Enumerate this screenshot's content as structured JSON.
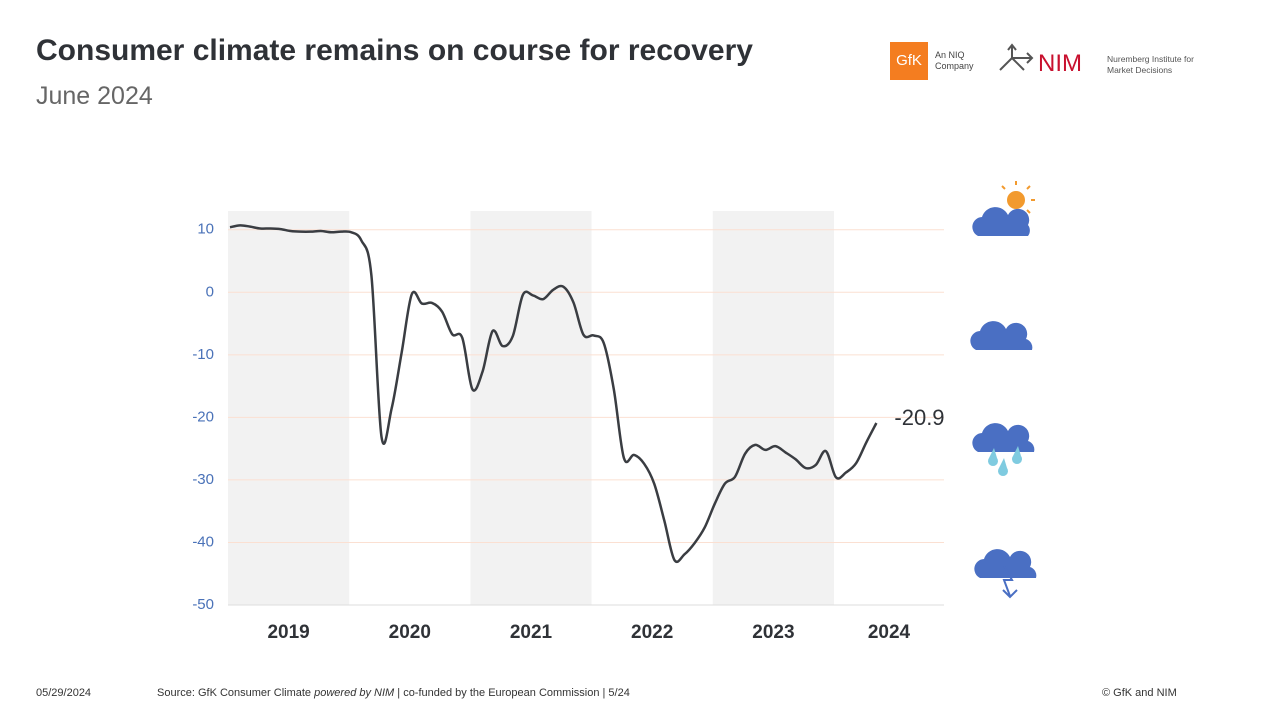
{
  "header": {
    "title": "Consumer climate remains on course for recovery",
    "subtitle": "June 2024",
    "logo_gfk": "GfK",
    "logo_gfk_tagline": "An NIQ Company",
    "logo_nim": "NIM",
    "logo_nim_tagline": "Nuremberg Institute for Market Decisions"
  },
  "chart_data": {
    "type": "line",
    "color": "#3a3d42",
    "xticks": [
      "2019",
      "2020",
      "2021",
      "2022",
      "2023",
      "2024"
    ],
    "values": [
      10.4,
      10.7,
      10.5,
      10.2,
      10.2,
      10.1,
      9.8,
      9.7,
      9.7,
      9.8,
      9.6,
      9.7,
      9.6,
      8.3,
      2.7,
      -23.1,
      -18.6,
      -9.6,
      -0.3,
      -1.8,
      -1.7,
      -3.1,
      -6.7,
      -7.3,
      -15.5,
      -12.7,
      -6.2,
      -8.6,
      -7.0,
      -0.4,
      -0.5,
      -1.1,
      0.4,
      0.9,
      -1.6,
      -6.8,
      -6.9,
      -8.1,
      -15.5,
      -26.5,
      -26.0,
      -27.4,
      -30.6,
      -36.5,
      -42.8,
      -41.9,
      -40.1,
      -37.6,
      -33.8,
      -30.6,
      -29.5,
      -25.8,
      -24.4,
      -25.2,
      -24.6,
      -25.6,
      -26.7,
      -28.1,
      -27.6,
      -25.4,
      -29.6,
      -28.8,
      -27.3,
      -24.0,
      -20.9
    ],
    "ylim": [
      -50,
      13
    ],
    "yticks": [
      10,
      0,
      -10,
      -20,
      -30,
      -40,
      -50
    ],
    "grid": true
  },
  "footer": {
    "date": "05/29/2024",
    "source_prefix": "Source: GfK Consumer Climate ",
    "source_italic": "powered by NIM",
    "source_suffix": " | co-funded by the European Commission | 5/24",
    "copyright": "© GfK and NIM"
  }
}
